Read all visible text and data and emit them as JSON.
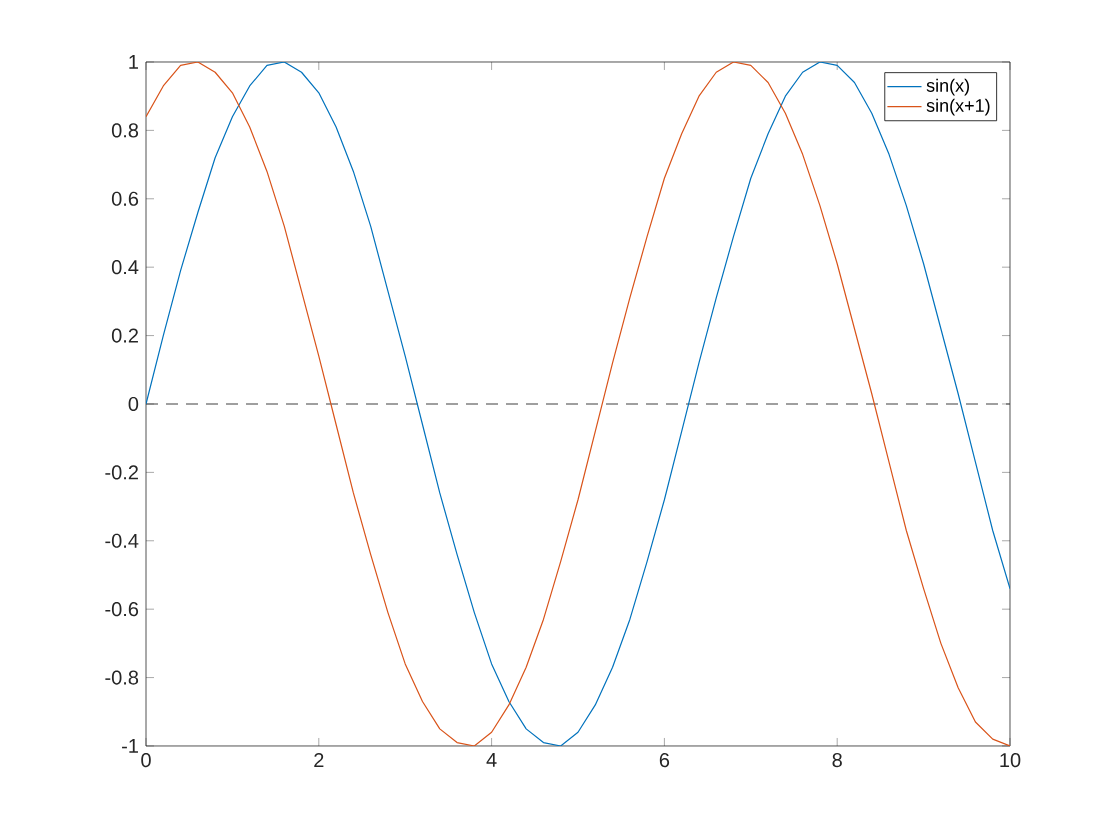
{
  "chart_data": {
    "type": "line",
    "x": [
      0,
      0.2,
      0.4,
      0.6,
      0.8,
      1,
      1.2,
      1.4,
      1.6,
      1.8,
      2,
      2.2,
      2.4,
      2.6,
      2.8,
      3,
      3.2,
      3.4,
      3.6,
      3.8,
      4,
      4.2,
      4.4,
      4.6,
      4.8,
      5,
      5.2,
      5.4,
      5.6,
      5.8,
      6,
      6.2,
      6.4,
      6.6,
      6.8,
      7,
      7.2,
      7.4,
      7.6,
      7.8,
      8,
      8.2,
      8.4,
      8.6,
      8.8,
      9,
      9.2,
      9.4,
      9.6,
      9.8,
      10
    ],
    "series": [
      {
        "name": "sin(x)",
        "color": "#0072bd",
        "values": [
          0.0,
          0.2,
          0.39,
          0.56,
          0.72,
          0.84,
          0.93,
          0.99,
          1.0,
          0.97,
          0.91,
          0.81,
          0.68,
          0.52,
          0.33,
          0.14,
          -0.06,
          -0.26,
          -0.44,
          -0.61,
          -0.76,
          -0.87,
          -0.95,
          -0.99,
          -1.0,
          -0.96,
          -0.88,
          -0.77,
          -0.63,
          -0.46,
          -0.28,
          -0.08,
          0.12,
          0.31,
          0.49,
          0.66,
          0.79,
          0.9,
          0.97,
          1.0,
          0.99,
          0.94,
          0.85,
          0.73,
          0.58,
          0.41,
          0.22,
          0.03,
          -0.17,
          -0.37,
          -0.54
        ]
      },
      {
        "name": "sin(x+1)",
        "color": "#d95319",
        "values": [
          0.84,
          0.93,
          0.99,
          1.0,
          0.97,
          0.91,
          0.81,
          0.68,
          0.52,
          0.33,
          0.14,
          -0.06,
          -0.26,
          -0.44,
          -0.61,
          -0.76,
          -0.87,
          -0.95,
          -0.99,
          -1.0,
          -0.96,
          -0.88,
          -0.77,
          -0.63,
          -0.46,
          -0.28,
          -0.08,
          0.12,
          0.31,
          0.49,
          0.66,
          0.79,
          0.9,
          0.97,
          1.0,
          0.99,
          0.94,
          0.85,
          0.73,
          0.58,
          0.41,
          0.22,
          0.03,
          -0.17,
          -0.37,
          -0.54,
          -0.7,
          -0.83,
          -0.93,
          -0.98,
          -1.0
        ]
      }
    ],
    "xlim": [
      0,
      10
    ],
    "ylim": [
      -1,
      1
    ],
    "xticks": [
      0,
      2,
      4,
      6,
      8,
      10
    ],
    "yticks": [
      -1,
      -0.8,
      -0.6,
      -0.4,
      -0.2,
      0,
      0.2,
      0.4,
      0.6,
      0.8,
      1
    ],
    "ref_lines": [
      {
        "axis": "y",
        "value": 0,
        "color": "#404040",
        "line_style": "dashed"
      }
    ],
    "legend": "top right",
    "marker": "none",
    "line_style": "solid"
  }
}
